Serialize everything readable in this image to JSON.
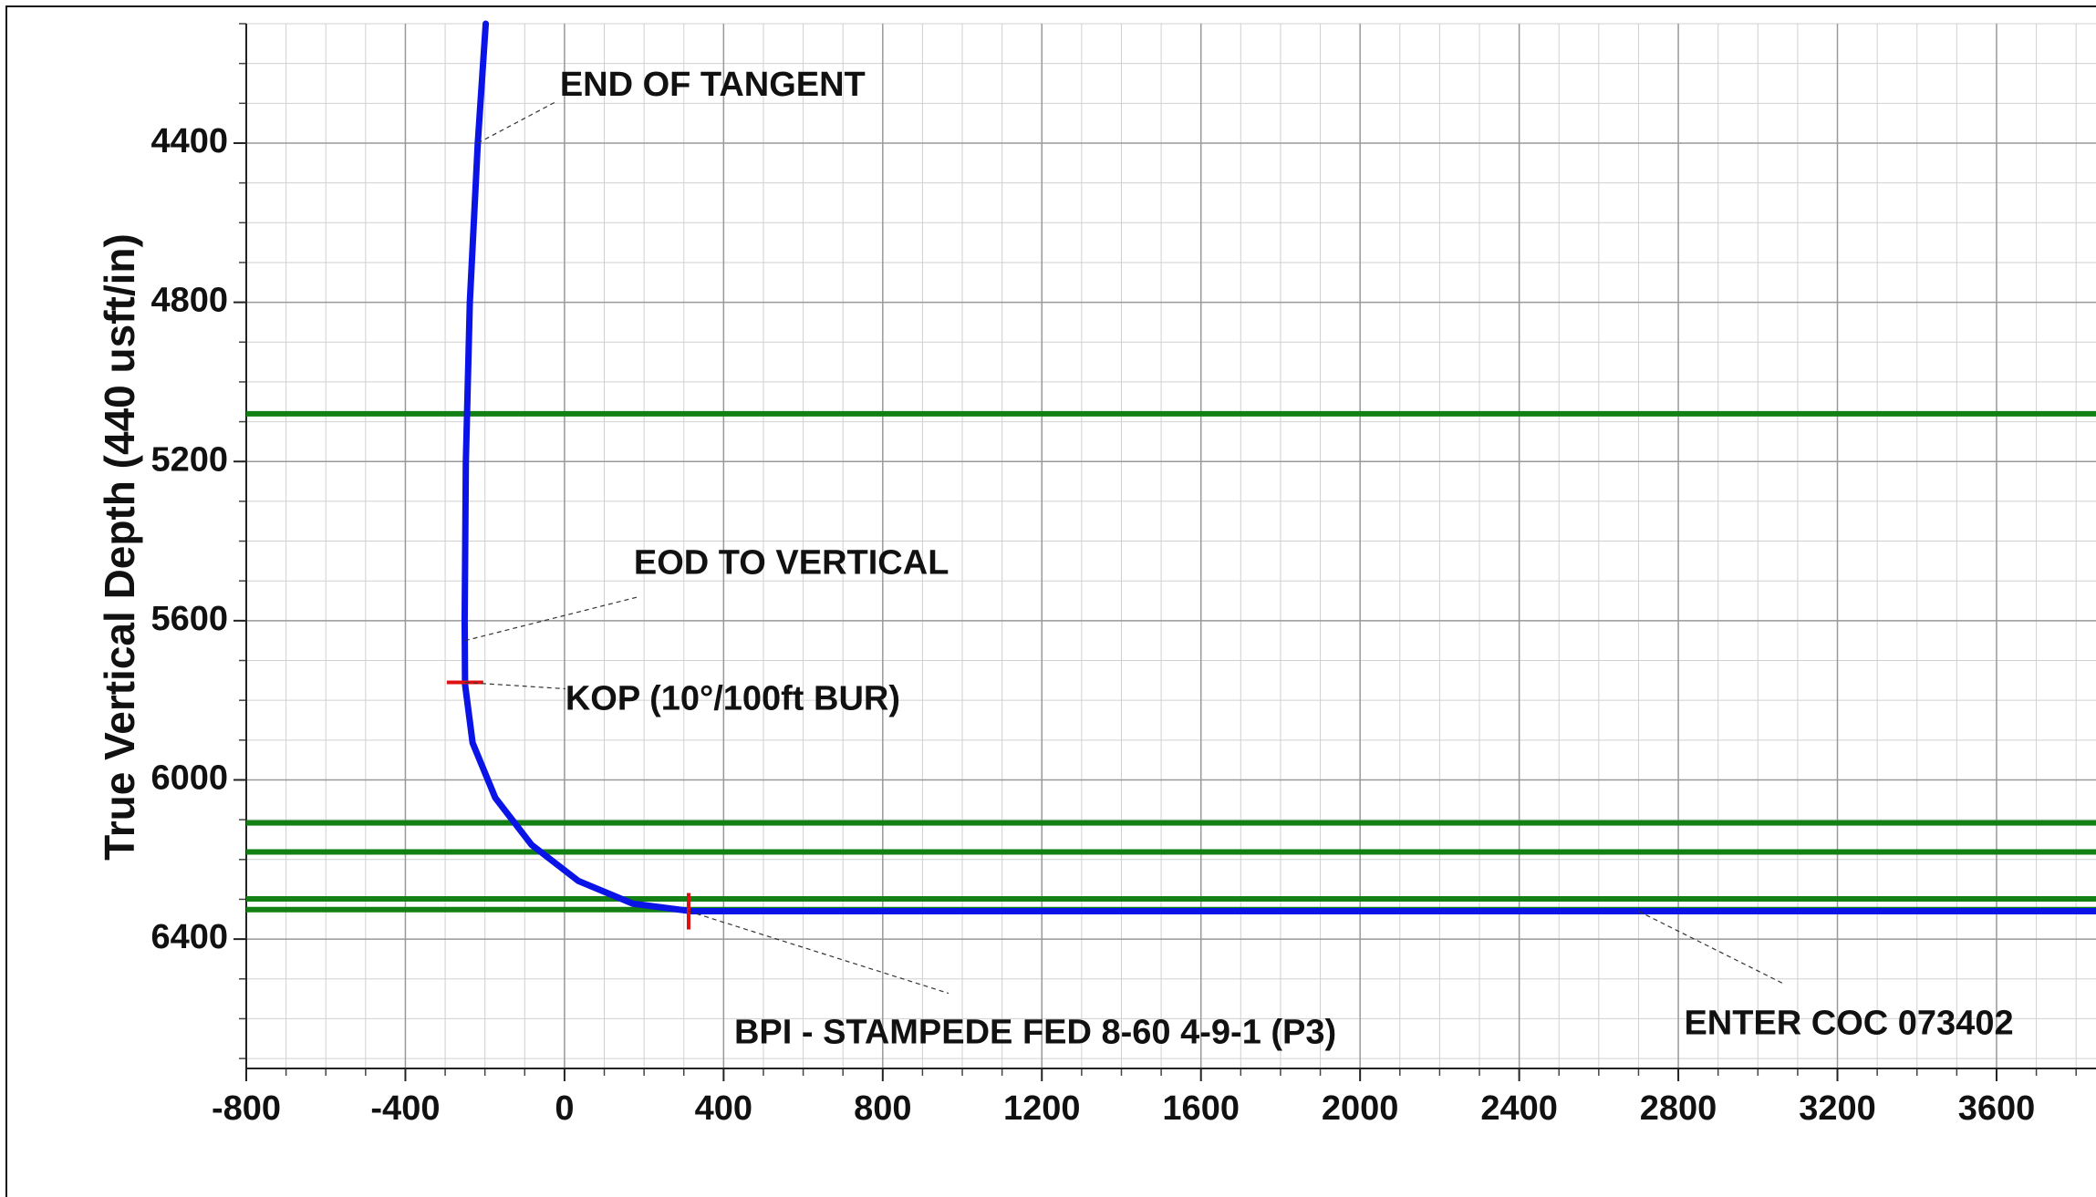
{
  "chart_data": {
    "type": "line",
    "y_label": "True Vertical Depth (440 usft/in)",
    "xlim": [
      -800,
      3850
    ],
    "ylim": [
      4100,
      6725
    ],
    "y_inverted": true,
    "xticks": [
      -800,
      -400,
      0,
      400,
      800,
      1200,
      1600,
      2000,
      2400,
      2800,
      3200,
      3600
    ],
    "yticks": [
      4400,
      4800,
      5200,
      5600,
      6000,
      6400
    ],
    "grid": true,
    "minor_step": 100,
    "formation_lines": {
      "color": "#138013",
      "values": [
        5080,
        6108,
        6181,
        6299,
        6326
      ]
    },
    "series": [
      {
        "color": "#0a14e6",
        "x": [
          -198,
          -218,
          -238,
          -248,
          -251,
          -250,
          -231,
          -174,
          -83,
          35,
          172,
          320,
          3850
        ],
        "values": [
          4100,
          4400,
          4800,
          5200,
          5600,
          5760,
          5907,
          6045,
          6163,
          6254,
          6311,
          6330,
          6330
        ]
      }
    ],
    "markers": {
      "color": "#e01010",
      "x": [
        -250,
        312
      ],
      "values": [
        5755,
        6330
      ]
    },
    "annotations": [
      {
        "text": "END OF TANGENT",
        "x": -218,
        "y": 4400
      },
      {
        "text": "EOD TO VERTICAL",
        "x": -250,
        "y": 5650
      },
      {
        "text": "KOP (10°/100ft BUR)",
        "x": -250,
        "y": 5755
      },
      {
        "text": "BPI - STAMPEDE FED 8-60 4-9-1 (P3)",
        "x": 312,
        "y": 6330
      },
      {
        "text": "ENTER COC 073402",
        "x": 2700,
        "y": 6330
      }
    ]
  }
}
